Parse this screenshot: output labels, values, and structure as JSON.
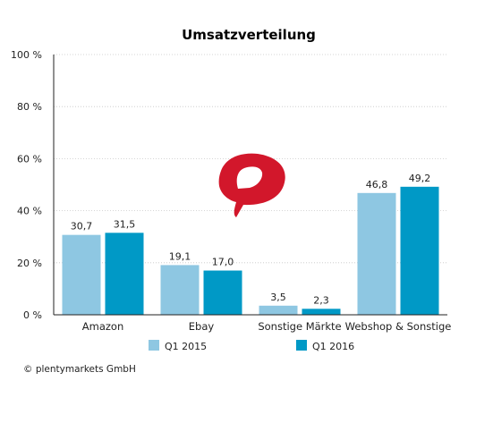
{
  "chart_data": {
    "type": "bar",
    "title": "Umsatzverteilung",
    "categories": [
      "Amazon",
      "Ebay",
      "Sonstige Märkte",
      "Webshop & Sonstige"
    ],
    "series": [
      {
        "name": "Q1 2015",
        "color": "#8ec7e2",
        "values": [
          30.7,
          19.1,
          3.5,
          46.8
        ],
        "labels": [
          "30,7",
          "19,1",
          "3,5",
          "46,8"
        ]
      },
      {
        "name": "Q1 2016",
        "color": "#0099c6",
        "values": [
          31.5,
          17.0,
          2.3,
          49.2
        ],
        "labels": [
          "31,5",
          "17,0",
          "2,3",
          "49,2"
        ]
      }
    ],
    "ylim": [
      0,
      100
    ],
    "yticks": [
      {
        "value": 0,
        "label": "0 %"
      },
      {
        "value": 20,
        "label": "20 %"
      },
      {
        "value": 40,
        "label": "40 %"
      },
      {
        "value": 60,
        "label": "60 %"
      },
      {
        "value": 80,
        "label": "80 %"
      },
      {
        "value": 100,
        "label": "100 %"
      }
    ],
    "grid": true,
    "legend": "bottom",
    "logo_color": "#d2172b",
    "copyright": "© plentymarkets GmbH"
  }
}
